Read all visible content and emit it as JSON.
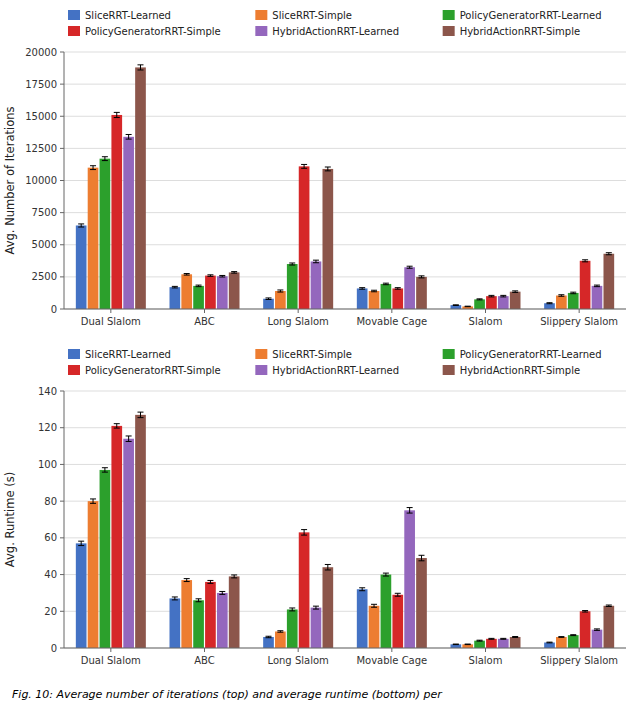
{
  "chart_data": [
    {
      "type": "bar",
      "y_label": "Avg. Number of Iterations",
      "categories": [
        "Dual Slalom",
        "ABC",
        "Long Slalom",
        "Movable Cage",
        "Slalom",
        "Slippery Slalom"
      ],
      "series": [
        {
          "name": "SliceRRT-Learned",
          "color": "#4472C4",
          "values": [
            6500,
            1700,
            800,
            1600,
            300,
            450
          ],
          "errors": [
            120,
            60,
            60,
            60,
            25,
            40
          ]
        },
        {
          "name": "SliceRRT-Simple",
          "color": "#ED7D31",
          "values": [
            11000,
            2700,
            1400,
            1400,
            200,
            1050
          ],
          "errors": [
            150,
            60,
            80,
            60,
            20,
            60
          ]
        },
        {
          "name": "PolicyGeneratorRRT-Learned",
          "color": "#2CA02C",
          "values": [
            11700,
            1800,
            3500,
            1950,
            750,
            1250
          ],
          "errors": [
            150,
            60,
            80,
            60,
            40,
            60
          ]
        },
        {
          "name": "PolicyGeneratorRRT-Simple",
          "color": "#D62728",
          "values": [
            15100,
            2600,
            11100,
            1600,
            1000,
            3750
          ],
          "errors": [
            200,
            60,
            150,
            60,
            60,
            80
          ]
        },
        {
          "name": "HybridActionRRT-Learned",
          "color": "#9467BD",
          "values": [
            13400,
            2550,
            3700,
            3250,
            1000,
            1800
          ],
          "errors": [
            180,
            60,
            100,
            80,
            60,
            60
          ]
        },
        {
          "name": "HybridActionRRT-Simple",
          "color": "#8C564B",
          "values": [
            18800,
            2850,
            10900,
            2500,
            1350,
            4300
          ],
          "errors": [
            200,
            60,
            150,
            80,
            60,
            80
          ]
        }
      ],
      "ylim": [
        0,
        20000
      ],
      "yticks": [
        0,
        2500,
        5000,
        7500,
        10000,
        12500,
        15000,
        17500,
        20000
      ],
      "grid": true,
      "legend": "top"
    },
    {
      "type": "bar",
      "y_label": "Avg. Runtime (s)",
      "categories": [
        "Dual Slalom",
        "ABC",
        "Long Slalom",
        "Movable Cage",
        "Slalom",
        "Slippery Slalom"
      ],
      "series": [
        {
          "name": "SliceRRT-Learned",
          "color": "#4472C4",
          "values": [
            57,
            27,
            6,
            32,
            2,
            3
          ],
          "errors": [
            1.2,
            0.8,
            0.4,
            0.8,
            0.15,
            0.2
          ]
        },
        {
          "name": "SliceRRT-Simple",
          "color": "#ED7D31",
          "values": [
            80,
            37,
            9,
            23,
            2,
            6
          ],
          "errors": [
            1.2,
            0.8,
            0.4,
            0.8,
            0.15,
            0.2
          ]
        },
        {
          "name": "PolicyGeneratorRRT-Learned",
          "color": "#2CA02C",
          "values": [
            97,
            26,
            21,
            40,
            4,
            7
          ],
          "errors": [
            1.2,
            0.8,
            0.8,
            0.8,
            0.25,
            0.25
          ]
        },
        {
          "name": "PolicyGeneratorRRT-Simple",
          "color": "#D62728",
          "values": [
            121,
            36,
            63,
            29,
            5,
            20
          ],
          "errors": [
            1.2,
            0.8,
            1.5,
            0.8,
            0.25,
            0.4
          ]
        },
        {
          "name": "HybridActionRRT-Learned",
          "color": "#9467BD",
          "values": [
            114,
            30,
            22,
            75,
            5,
            10
          ],
          "errors": [
            1.5,
            0.8,
            0.8,
            1.5,
            0.25,
            0.4
          ]
        },
        {
          "name": "HybridActionRRT-Simple",
          "color": "#8C564B",
          "values": [
            127,
            39,
            44,
            49,
            6,
            23
          ],
          "errors": [
            1.5,
            0.8,
            1.5,
            1.5,
            0.25,
            0.4
          ]
        }
      ],
      "ylim": [
        0,
        140
      ],
      "yticks": [
        0,
        20,
        40,
        60,
        80,
        100,
        120,
        140
      ],
      "grid": true,
      "legend": "top",
      "caption": "Fig. 10: Average number of iterations (top) and average runtime (bottom) per"
    }
  ]
}
